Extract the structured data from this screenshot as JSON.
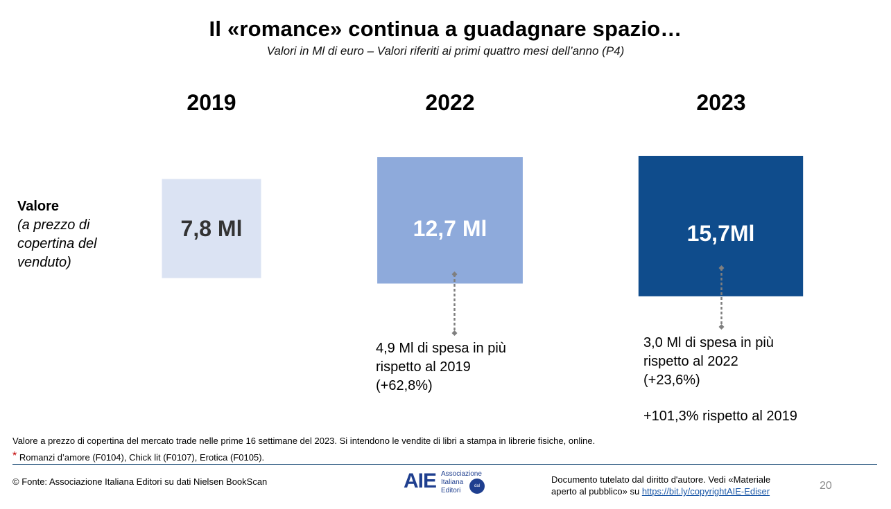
{
  "title": "Il «romance» continua a guadagnare spazio…",
  "subtitle": "Valori in Ml di euro – Valori riferiti ai primi quattro mesi dell’anno (P4)",
  "row_label": {
    "bold": "Valore",
    "italic_lines": [
      "(a prezzo di",
      "copertina del",
      "venduto)"
    ]
  },
  "chart_data": {
    "type": "bar",
    "categories": [
      "2019",
      "2022",
      "2023"
    ],
    "values": [
      7.8,
      12.7,
      15.7
    ],
    "value_labels": [
      "7,8 Ml",
      "12,7 Ml",
      "15,7Ml"
    ],
    "unit": "Ml di euro",
    "colors": [
      "#dbe3f3",
      "#8eaadb",
      "#0f4c8c"
    ],
    "label_colors": [
      "#333333",
      "#ffffff",
      "#ffffff"
    ],
    "connector_color": "#7f7f7f"
  },
  "notes": {
    "n2022": [
      "4,9 Ml di spesa in più",
      "rispetto al 2019",
      "(+62,8%)"
    ],
    "n2023": [
      "3,0 Ml di spesa in più",
      "rispetto al 2022",
      "(+23,6%)"
    ],
    "n2023_extra": "+101,3% rispetto al 2019"
  },
  "footnotes": {
    "line1": "Valore a prezzo di copertina del mercato trade nelle prime 16 settimane del 2023. Si intendono le vendite di libri a stampa in librerie fisiche, online.",
    "asterisk": "*",
    "line2": "Romanzi d’amore (F0104), Chick lit (F0107), Erotica (F0105)."
  },
  "footer": {
    "source": "© Fonte: Associazione Italiana Editori su dati Nielsen BookScan",
    "logo": {
      "letters": "AIE",
      "lines": [
        "Associazione",
        "Italiana",
        "Editori"
      ],
      "seal": "dal 1869"
    },
    "copyright_line1": "Documento tutelato dal diritto d'autore. Vedi «Materiale",
    "copyright_line2": "aperto al pubblico» su",
    "link": "https://bit.ly/copyrightAIE-Ediser",
    "page": "20"
  }
}
